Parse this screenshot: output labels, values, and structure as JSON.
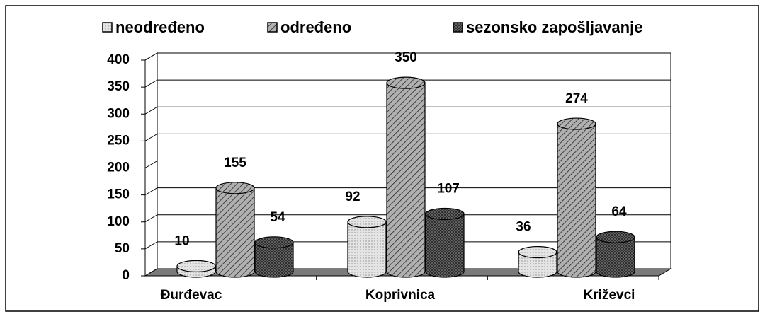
{
  "chart_data": {
    "type": "bar3d",
    "categories": [
      "Đurđevac",
      "Koprivnica",
      "Križevci"
    ],
    "series": [
      {
        "name": "neodređeno",
        "color": "#e4e4e4",
        "values": [
          10,
          92,
          36
        ]
      },
      {
        "name": "određeno",
        "color": "#b0b0b0",
        "values": [
          155,
          350,
          274
        ]
      },
      {
        "name": "sezonsko zapošljavanje",
        "color": "#6e6e6e",
        "values": [
          54,
          107,
          64
        ]
      }
    ],
    "ylim": [
      0,
      400
    ],
    "yticks": [
      0,
      50,
      100,
      150,
      200,
      250,
      300,
      350,
      400
    ],
    "grid": true,
    "legend": "top"
  }
}
